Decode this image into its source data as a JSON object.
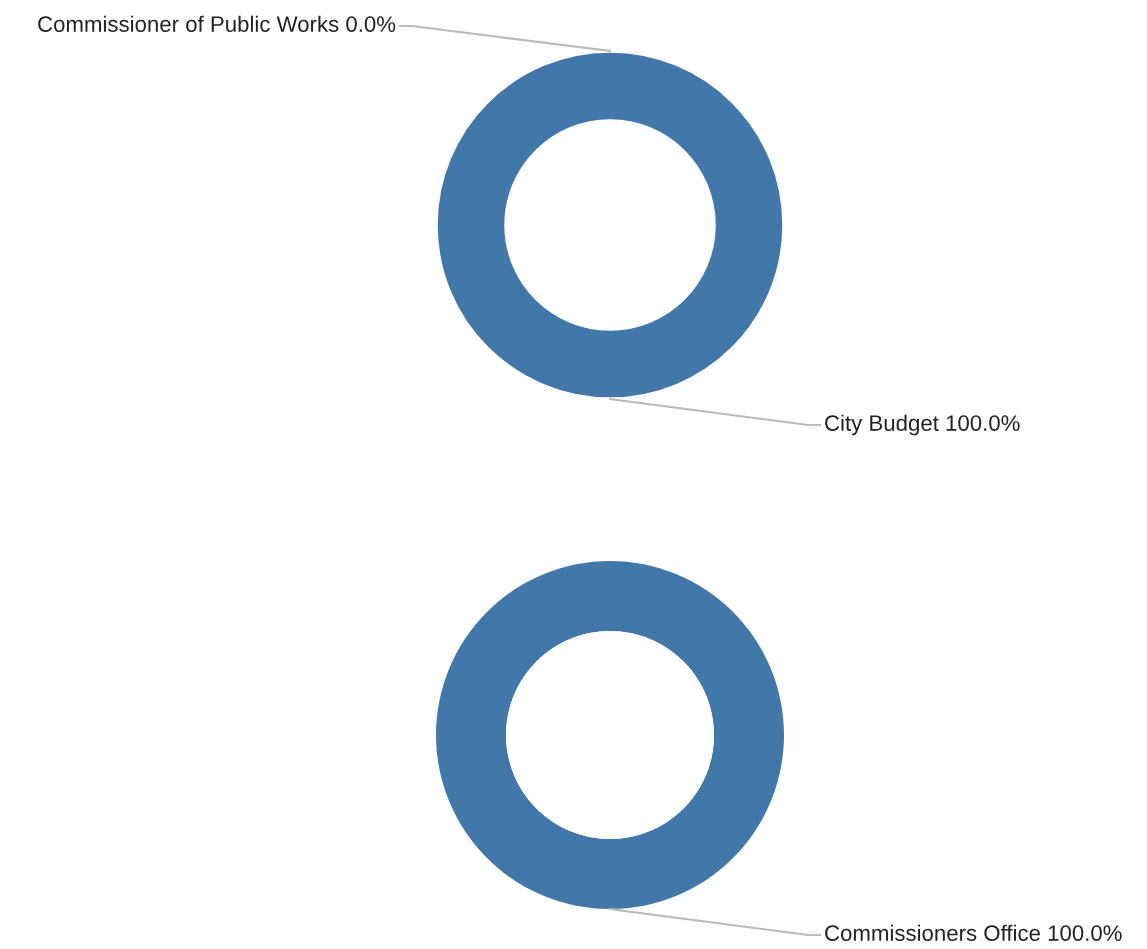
{
  "chart_data": [
    {
      "type": "donut",
      "categories": [
        "Commissioner of Public Works",
        "City Budget"
      ],
      "values": [
        0,
        100
      ],
      "value_labels": [
        "0.0%",
        "100.0%"
      ],
      "colors": [
        "#4277aa",
        "#4277aa"
      ]
    },
    {
      "type": "donut",
      "categories": [
        "Commissioners Office"
      ],
      "values": [
        100
      ],
      "value_labels": [
        "100.0%"
      ],
      "colors": [
        "#4277aa"
      ]
    }
  ]
}
